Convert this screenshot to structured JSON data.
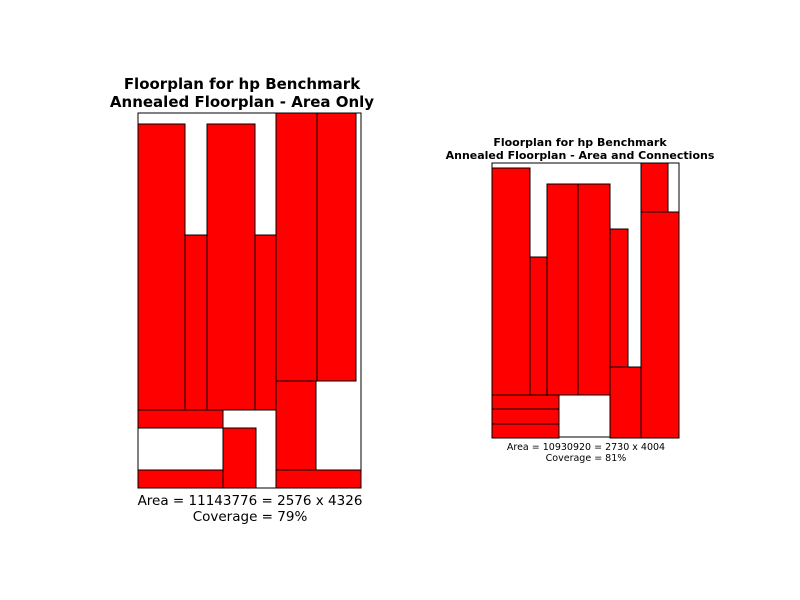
{
  "colors": {
    "block_fill": "#ff0000",
    "block_stroke": "#000000",
    "outline_stroke": "#000000",
    "background": "#ffffff"
  },
  "floorplans": [
    {
      "title_line1": "Floorplan for hp Benchmark",
      "title_line2": "Annealed Floorplan - Area Only",
      "area_text": "Area = 11143776 = 2576 x 4326",
      "coverage_text": "Coverage = 79%"
    },
    {
      "title_line1": "Floorplan for hp Benchmark",
      "title_line2": "Annealed Floorplan - Area and Connections",
      "area_text": "Area = 10930920 = 2730 x 4004",
      "coverage_text": "Coverage = 81%"
    }
  ]
}
